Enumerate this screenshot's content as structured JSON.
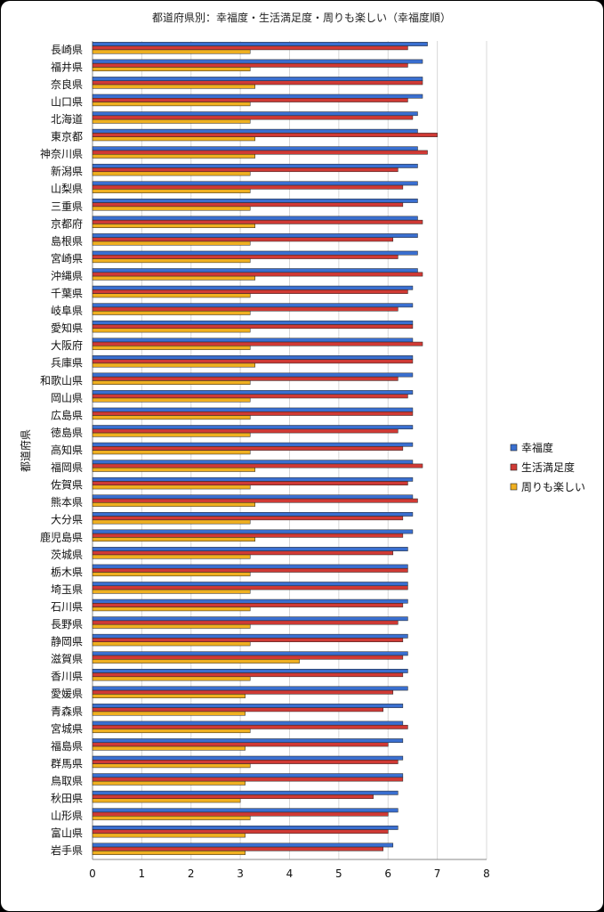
{
  "chart_data": {
    "type": "bar",
    "orientation": "horizontal",
    "title": "都道府県別：幸福度・生活満足度・周りも楽しい（幸福度順）",
    "xlabel": "",
    "ylabel": "都道府県",
    "xlim": [
      0,
      8
    ],
    "xticks": [
      "0",
      "1",
      "2",
      "3",
      "4",
      "5",
      "6",
      "7",
      "8"
    ],
    "grid": "vertical",
    "legend_position": "right",
    "categories": [
      "長崎県",
      "福井県",
      "奈良県",
      "山口県",
      "北海道",
      "東京都",
      "神奈川県",
      "新潟県",
      "山梨県",
      "三重県",
      "京都府",
      "島根県",
      "宮崎県",
      "沖縄県",
      "千葉県",
      "岐阜県",
      "愛知県",
      "大阪府",
      "兵庫県",
      "和歌山県",
      "岡山県",
      "広島県",
      "徳島県",
      "高知県",
      "福岡県",
      "佐賀県",
      "熊本県",
      "大分県",
      "鹿児島県",
      "茨城県",
      "栃木県",
      "埼玉県",
      "石川県",
      "長野県",
      "静岡県",
      "滋賀県",
      "香川県",
      "愛媛県",
      "青森県",
      "宮城県",
      "福島県",
      "群馬県",
      "鳥取県",
      "秋田県",
      "山形県",
      "富山県",
      "岩手県"
    ],
    "series": [
      {
        "name": "幸福度",
        "color": "#3a6fd0",
        "values": [
          6.8,
          6.7,
          6.7,
          6.7,
          6.6,
          6.6,
          6.6,
          6.6,
          6.6,
          6.6,
          6.6,
          6.6,
          6.6,
          6.6,
          6.5,
          6.5,
          6.5,
          6.5,
          6.5,
          6.5,
          6.5,
          6.5,
          6.5,
          6.5,
          6.5,
          6.5,
          6.5,
          6.5,
          6.5,
          6.4,
          6.4,
          6.4,
          6.4,
          6.4,
          6.4,
          6.4,
          6.4,
          6.4,
          6.3,
          6.3,
          6.3,
          6.3,
          6.3,
          6.2,
          6.2,
          6.2,
          6.1
        ]
      },
      {
        "name": "生活満足度",
        "color": "#d03a35",
        "values": [
          6.4,
          6.4,
          6.7,
          6.4,
          6.5,
          7.0,
          6.8,
          6.2,
          6.3,
          6.3,
          6.7,
          6.1,
          6.2,
          6.7,
          6.4,
          6.2,
          6.5,
          6.7,
          6.5,
          6.2,
          6.4,
          6.5,
          6.2,
          6.3,
          6.7,
          6.4,
          6.6,
          6.3,
          6.3,
          6.1,
          6.4,
          6.4,
          6.3,
          6.2,
          6.3,
          6.3,
          6.3,
          6.1,
          5.9,
          6.4,
          6.0,
          6.2,
          6.3,
          5.7,
          6.0,
          6.0,
          5.9
        ]
      },
      {
        "name": "周りも楽しい",
        "color": "#f0b020",
        "values": [
          3.2,
          3.2,
          3.3,
          3.2,
          3.2,
          3.3,
          3.3,
          3.2,
          3.2,
          3.2,
          3.3,
          3.2,
          3.2,
          3.3,
          3.2,
          3.2,
          3.2,
          3.2,
          3.3,
          3.2,
          3.2,
          3.2,
          3.2,
          3.2,
          3.3,
          3.2,
          3.3,
          3.2,
          3.3,
          3.2,
          3.2,
          3.2,
          3.2,
          3.2,
          3.2,
          4.2,
          3.2,
          3.1,
          3.1,
          3.2,
          3.1,
          3.2,
          3.1,
          3.0,
          3.2,
          3.1,
          3.1
        ]
      }
    ]
  }
}
